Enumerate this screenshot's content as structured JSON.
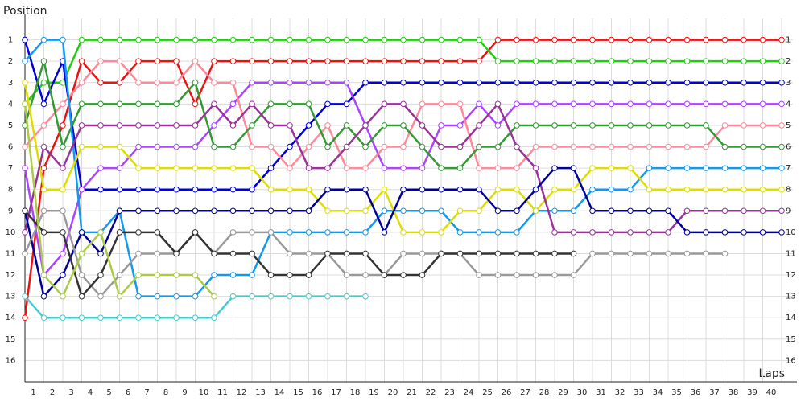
{
  "chart_data": {
    "type": "line",
    "ylabel": "Position",
    "xlabel": "Laps",
    "x": [
      0,
      1,
      2,
      3,
      4,
      5,
      6,
      7,
      8,
      9,
      10,
      11,
      12,
      13,
      14,
      15,
      16,
      17,
      18,
      19,
      20,
      21,
      22,
      23,
      24,
      25,
      26,
      27,
      28,
      29,
      30,
      31,
      32,
      33,
      34,
      35,
      36,
      37,
      38,
      39,
      40
    ],
    "xlim": [
      0,
      40.5
    ],
    "xticks": [
      1,
      2,
      3,
      4,
      5,
      6,
      7,
      8,
      9,
      10,
      11,
      12,
      13,
      14,
      15,
      16,
      17,
      18,
      19,
      20,
      21,
      22,
      23,
      24,
      25,
      26,
      27,
      28,
      29,
      30,
      31,
      32,
      33,
      34,
      35,
      36,
      37,
      38,
      39,
      40
    ],
    "ylim": [
      17,
      0
    ],
    "yticks": [
      1,
      2,
      3,
      4,
      5,
      6,
      7,
      8,
      9,
      10,
      11,
      12,
      13,
      14,
      15,
      16
    ],
    "grid": true,
    "series": [
      {
        "color": "#ee1111",
        "values": [
          14,
          7,
          5,
          2,
          3,
          3,
          2,
          2,
          2,
          4,
          2,
          2,
          2,
          2,
          2,
          2,
          2,
          2,
          2,
          2,
          2,
          2,
          2,
          2,
          2,
          1,
          1,
          1,
          1,
          1,
          1,
          1,
          1,
          1,
          1,
          1,
          1,
          1,
          1,
          1,
          1
        ]
      },
      {
        "color": "#22cc11",
        "values": [
          4,
          3,
          3,
          1,
          1,
          1,
          1,
          1,
          1,
          1,
          1,
          1,
          1,
          1,
          1,
          1,
          1,
          1,
          1,
          1,
          1,
          1,
          1,
          1,
          1,
          2,
          2,
          2,
          2,
          2,
          2,
          2,
          2,
          2,
          2,
          2,
          2,
          2,
          2,
          2,
          2
        ]
      },
      {
        "color": "#0000dd",
        "values": [
          1,
          4,
          2,
          8,
          8,
          8,
          8,
          8,
          8,
          8,
          8,
          8,
          8,
          7,
          6,
          5,
          4,
          4,
          3,
          3,
          3,
          3,
          3,
          3,
          3,
          3,
          3,
          3,
          3,
          3,
          3,
          3,
          3,
          3,
          3,
          3,
          3,
          3,
          3,
          3,
          3
        ]
      },
      {
        "color": "#aa44ff",
        "values": [
          7,
          12,
          11,
          8,
          7,
          7,
          6,
          6,
          6,
          6,
          5,
          4,
          3,
          3,
          3,
          3,
          3,
          3,
          5,
          7,
          7,
          7,
          5,
          5,
          4,
          5,
          4,
          4,
          4,
          4,
          4,
          4,
          4,
          4,
          4,
          4,
          4,
          4,
          4,
          4,
          4
        ]
      },
      {
        "color": "#ff8899",
        "values": [
          6,
          5,
          4,
          3,
          2,
          2,
          3,
          3,
          3,
          2,
          3,
          3,
          6,
          6,
          7,
          6,
          5,
          7,
          7,
          6,
          6,
          4,
          4,
          4,
          7,
          7,
          7,
          6,
          6,
          6,
          6,
          6,
          6,
          6,
          6,
          6,
          6,
          5,
          5,
          5,
          5
        ]
      },
      {
        "color": "#339933",
        "values": [
          5,
          2,
          6,
          4,
          4,
          4,
          4,
          4,
          4,
          3,
          6,
          6,
          5,
          4,
          4,
          4,
          6,
          5,
          6,
          5,
          5,
          6,
          7,
          7,
          6,
          6,
          5,
          5,
          5,
          5,
          5,
          5,
          5,
          5,
          5,
          5,
          5,
          6,
          6,
          6,
          6
        ]
      },
      {
        "color": "#1199ee",
        "values": [
          2,
          1,
          1,
          10,
          10,
          9,
          13,
          13,
          13,
          13,
          12,
          12,
          12,
          10,
          10,
          10,
          10,
          10,
          10,
          9,
          9,
          9,
          9,
          10,
          10,
          10,
          10,
          9,
          9,
          9,
          8,
          8,
          8,
          7,
          7,
          7,
          7,
          7,
          7,
          7,
          7
        ]
      },
      {
        "color": "#dddd00",
        "values": [
          3,
          8,
          8,
          6,
          6,
          6,
          7,
          7,
          7,
          7,
          7,
          7,
          7,
          8,
          8,
          8,
          9,
          9,
          9,
          8,
          10,
          10,
          10,
          9,
          9,
          8,
          8,
          9,
          8,
          8,
          7,
          7,
          7,
          8,
          8,
          8,
          8,
          8,
          8,
          8,
          8
        ]
      },
      {
        "color": "#993399",
        "values": [
          10,
          6,
          7,
          5,
          5,
          5,
          5,
          5,
          5,
          5,
          4,
          5,
          4,
          5,
          5,
          7,
          7,
          6,
          5,
          4,
          4,
          5,
          6,
          6,
          5,
          4,
          6,
          7,
          10,
          10,
          10,
          10,
          10,
          10,
          10,
          9,
          9,
          9,
          9,
          9,
          9
        ]
      },
      {
        "color": "#000099",
        "values": [
          9,
          13,
          12,
          10,
          11,
          9,
          9,
          9,
          9,
          9,
          9,
          9,
          9,
          9,
          9,
          9,
          8,
          8,
          8,
          10,
          8,
          8,
          8,
          8,
          8,
          9,
          9,
          8,
          7,
          7,
          9,
          9,
          9,
          9,
          9,
          10,
          10,
          10,
          10,
          10,
          10
        ]
      },
      {
        "color": "#999999",
        "values": [
          11,
          9,
          9,
          12,
          13,
          12,
          11,
          11,
          11,
          10,
          11,
          10,
          10,
          10,
          11,
          11,
          11,
          12,
          12,
          12,
          11,
          11,
          11,
          11,
          12,
          12,
          12,
          12,
          12,
          12,
          11,
          11,
          11,
          11,
          11,
          11,
          11,
          11,
          null,
          null,
          null
        ]
      },
      {
        "color": "#333333",
        "values": [
          9,
          10,
          10,
          13,
          12,
          10,
          10,
          10,
          11,
          10,
          11,
          11,
          11,
          12,
          12,
          12,
          11,
          11,
          11,
          12,
          12,
          12,
          11,
          11,
          11,
          11,
          11,
          11,
          11,
          11,
          null,
          null,
          null,
          null,
          null,
          null,
          null,
          null,
          null,
          null,
          null
        ]
      },
      {
        "color": "#aacc44",
        "values": [
          4,
          12,
          13,
          11,
          10,
          13,
          12,
          12,
          12,
          12,
          13,
          null,
          null,
          null,
          null,
          null,
          null,
          null,
          null,
          null,
          null,
          null,
          null,
          null,
          null,
          null,
          null,
          null,
          null,
          null,
          null,
          null,
          null,
          null,
          null,
          null,
          null,
          null,
          null,
          null,
          null
        ]
      },
      {
        "color": "#44cccc",
        "values": [
          13,
          14,
          14,
          14,
          14,
          14,
          14,
          14,
          14,
          14,
          14,
          13,
          13,
          13,
          13,
          13,
          13,
          13,
          13,
          null,
          null,
          null,
          null,
          null,
          null,
          null,
          null,
          null,
          null,
          null,
          null,
          null,
          null,
          null,
          null,
          null,
          null,
          null,
          null,
          null,
          null
        ]
      }
    ]
  }
}
